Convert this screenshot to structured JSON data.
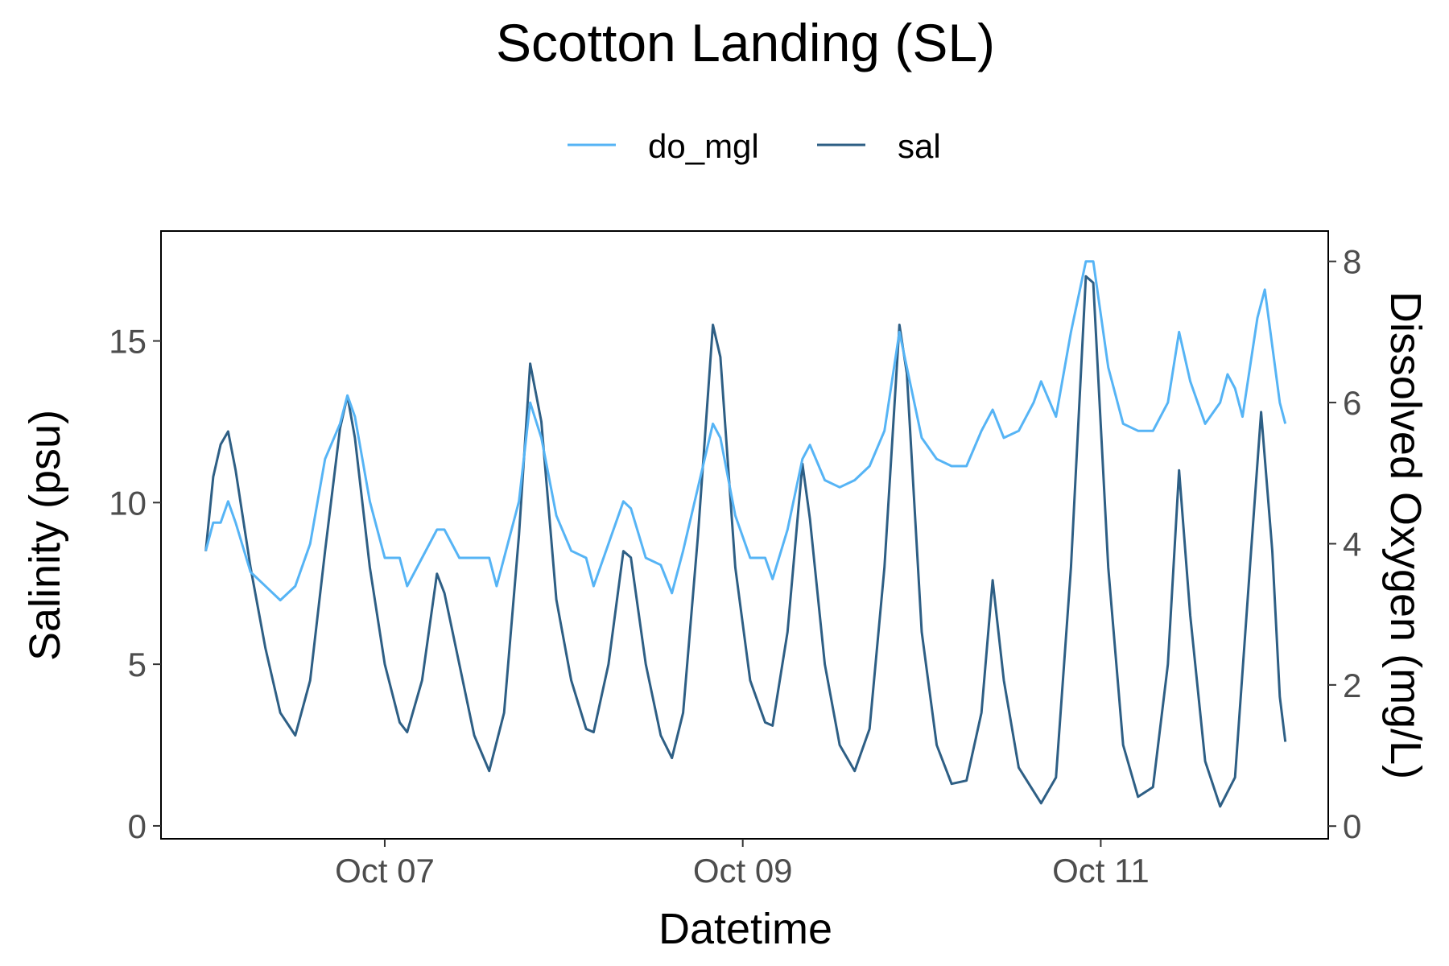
{
  "chart_data": {
    "type": "line",
    "title": "Scotton Landing (SL)",
    "xlabel": "Datetime",
    "ylabel": "Salinity (psu)",
    "y2label": "Dissolved Oxygen (mg/L)",
    "x_ticks": [
      "Oct 07",
      "Oct 09",
      "Oct 11"
    ],
    "x_tick_values": [
      "2021-10-07",
      "2021-10-09",
      "2021-10-11"
    ],
    "xlim": [
      "2021-10-05T18:00",
      "2021-10-12T06:30"
    ],
    "ylim": [
      -0.4,
      18.4
    ],
    "y_ticks": [
      0,
      5,
      10,
      15
    ],
    "y2lim": [
      -0.18,
      8.43
    ],
    "y2_ticks": [
      0,
      2,
      4,
      6,
      8
    ],
    "grid": false,
    "legend": {
      "position": "top",
      "entries": [
        "do_mgl",
        "sal"
      ]
    },
    "colors": {
      "do_mgl": "#56B4F5",
      "sal": "#2E5F85"
    },
    "series": [
      {
        "name": "sal",
        "axis": "left",
        "points": [
          [
            "2021-10-06T00:00",
            8.5
          ],
          [
            "2021-10-06T01:00",
            10.8
          ],
          [
            "2021-10-06T02:00",
            11.8
          ],
          [
            "2021-10-06T03:00",
            12.2
          ],
          [
            "2021-10-06T04:00",
            11.0
          ],
          [
            "2021-10-06T06:00",
            8.0
          ],
          [
            "2021-10-06T08:00",
            5.5
          ],
          [
            "2021-10-06T10:00",
            3.5
          ],
          [
            "2021-10-06T12:00",
            2.8
          ],
          [
            "2021-10-06T14:00",
            4.5
          ],
          [
            "2021-10-06T16:00",
            8.5
          ],
          [
            "2021-10-06T18:00",
            12.3
          ],
          [
            "2021-10-06T19:00",
            13.3
          ],
          [
            "2021-10-06T20:00",
            12.0
          ],
          [
            "2021-10-06T22:00",
            8.0
          ],
          [
            "2021-10-07T00:00",
            5.0
          ],
          [
            "2021-10-07T02:00",
            3.2
          ],
          [
            "2021-10-07T03:00",
            2.9
          ],
          [
            "2021-10-07T05:00",
            4.5
          ],
          [
            "2021-10-07T07:00",
            7.8
          ],
          [
            "2021-10-07T08:00",
            7.2
          ],
          [
            "2021-10-07T10:00",
            5.0
          ],
          [
            "2021-10-07T12:00",
            2.8
          ],
          [
            "2021-10-07T14:00",
            1.7
          ],
          [
            "2021-10-07T16:00",
            3.5
          ],
          [
            "2021-10-07T18:00",
            9.0
          ],
          [
            "2021-10-07T19:30",
            14.3
          ],
          [
            "2021-10-07T21:00",
            12.5
          ],
          [
            "2021-10-07T23:00",
            7.0
          ],
          [
            "2021-10-08T01:00",
            4.5
          ],
          [
            "2021-10-08T03:00",
            3.0
          ],
          [
            "2021-10-08T04:00",
            2.9
          ],
          [
            "2021-10-08T06:00",
            5.0
          ],
          [
            "2021-10-08T08:00",
            8.5
          ],
          [
            "2021-10-08T09:00",
            8.3
          ],
          [
            "2021-10-08T11:00",
            5.0
          ],
          [
            "2021-10-08T13:00",
            2.8
          ],
          [
            "2021-10-08T14:30",
            2.1
          ],
          [
            "2021-10-08T16:00",
            3.5
          ],
          [
            "2021-10-08T18:00",
            9.0
          ],
          [
            "2021-10-08T20:00",
            15.5
          ],
          [
            "2021-10-08T21:00",
            14.5
          ],
          [
            "2021-10-08T23:00",
            8.0
          ],
          [
            "2021-10-09T01:00",
            4.5
          ],
          [
            "2021-10-09T03:00",
            3.2
          ],
          [
            "2021-10-09T04:00",
            3.1
          ],
          [
            "2021-10-09T06:00",
            6.0
          ],
          [
            "2021-10-09T08:00",
            11.2
          ],
          [
            "2021-10-09T09:00",
            9.5
          ],
          [
            "2021-10-09T11:00",
            5.0
          ],
          [
            "2021-10-09T13:00",
            2.5
          ],
          [
            "2021-10-09T15:00",
            1.7
          ],
          [
            "2021-10-09T17:00",
            3.0
          ],
          [
            "2021-10-09T19:00",
            8.0
          ],
          [
            "2021-10-09T21:00",
            15.5
          ],
          [
            "2021-10-09T22:00",
            14.0
          ],
          [
            "2021-10-10T00:00",
            6.0
          ],
          [
            "2021-10-10T02:00",
            2.5
          ],
          [
            "2021-10-10T04:00",
            1.3
          ],
          [
            "2021-10-10T06:00",
            1.4
          ],
          [
            "2021-10-10T08:00",
            3.5
          ],
          [
            "2021-10-10T09:30",
            7.6
          ],
          [
            "2021-10-10T11:00",
            4.5
          ],
          [
            "2021-10-10T13:00",
            1.8
          ],
          [
            "2021-10-10T16:00",
            0.7
          ],
          [
            "2021-10-10T18:00",
            1.5
          ],
          [
            "2021-10-10T20:00",
            8.0
          ],
          [
            "2021-10-10T22:00",
            17.0
          ],
          [
            "2021-10-10T23:00",
            16.8
          ],
          [
            "2021-10-11T01:00",
            8.0
          ],
          [
            "2021-10-11T03:00",
            2.5
          ],
          [
            "2021-10-11T05:00",
            0.9
          ],
          [
            "2021-10-11T07:00",
            1.2
          ],
          [
            "2021-10-11T09:00",
            5.0
          ],
          [
            "2021-10-11T10:30",
            11.0
          ],
          [
            "2021-10-11T12:00",
            6.5
          ],
          [
            "2021-10-11T14:00",
            2.0
          ],
          [
            "2021-10-11T16:00",
            0.6
          ],
          [
            "2021-10-11T18:00",
            1.5
          ],
          [
            "2021-10-11T20:00",
            8.0
          ],
          [
            "2021-10-11T21:30",
            12.8
          ],
          [
            "2021-10-11T23:00",
            8.5
          ],
          [
            "2021-10-12T00:00",
            4.0
          ],
          [
            "2021-10-12T00:45",
            2.6
          ]
        ]
      },
      {
        "name": "do_mgl",
        "axis": "right",
        "points": [
          [
            "2021-10-06T00:00",
            3.9
          ],
          [
            "2021-10-06T01:00",
            4.3
          ],
          [
            "2021-10-06T02:00",
            4.3
          ],
          [
            "2021-10-06T03:00",
            4.6
          ],
          [
            "2021-10-06T04:00",
            4.3
          ],
          [
            "2021-10-06T06:00",
            3.6
          ],
          [
            "2021-10-06T08:00",
            3.4
          ],
          [
            "2021-10-06T10:00",
            3.2
          ],
          [
            "2021-10-06T12:00",
            3.4
          ],
          [
            "2021-10-06T14:00",
            4.0
          ],
          [
            "2021-10-06T16:00",
            5.2
          ],
          [
            "2021-10-06T18:00",
            5.7
          ],
          [
            "2021-10-06T19:00",
            6.1
          ],
          [
            "2021-10-06T20:00",
            5.8
          ],
          [
            "2021-10-06T22:00",
            4.6
          ],
          [
            "2021-10-07T00:00",
            3.8
          ],
          [
            "2021-10-07T02:00",
            3.8
          ],
          [
            "2021-10-07T03:00",
            3.4
          ],
          [
            "2021-10-07T05:00",
            3.8
          ],
          [
            "2021-10-07T07:00",
            4.2
          ],
          [
            "2021-10-07T08:00",
            4.2
          ],
          [
            "2021-10-07T10:00",
            3.8
          ],
          [
            "2021-10-07T12:00",
            3.8
          ],
          [
            "2021-10-07T14:00",
            3.8
          ],
          [
            "2021-10-07T15:00",
            3.4
          ],
          [
            "2021-10-07T16:00",
            3.8
          ],
          [
            "2021-10-07T18:00",
            4.6
          ],
          [
            "2021-10-07T19:30",
            6.0
          ],
          [
            "2021-10-07T21:00",
            5.5
          ],
          [
            "2021-10-07T23:00",
            4.4
          ],
          [
            "2021-10-08T01:00",
            3.9
          ],
          [
            "2021-10-08T03:00",
            3.8
          ],
          [
            "2021-10-08T04:00",
            3.4
          ],
          [
            "2021-10-08T06:00",
            4.0
          ],
          [
            "2021-10-08T08:00",
            4.6
          ],
          [
            "2021-10-08T09:00",
            4.5
          ],
          [
            "2021-10-08T11:00",
            3.8
          ],
          [
            "2021-10-08T13:00",
            3.7
          ],
          [
            "2021-10-08T14:30",
            3.3
          ],
          [
            "2021-10-08T16:00",
            3.9
          ],
          [
            "2021-10-08T18:00",
            4.8
          ],
          [
            "2021-10-08T20:00",
            5.7
          ],
          [
            "2021-10-08T21:00",
            5.5
          ],
          [
            "2021-10-08T23:00",
            4.4
          ],
          [
            "2021-10-09T01:00",
            3.8
          ],
          [
            "2021-10-09T03:00",
            3.8
          ],
          [
            "2021-10-09T04:00",
            3.5
          ],
          [
            "2021-10-09T06:00",
            4.2
          ],
          [
            "2021-10-09T08:00",
            5.2
          ],
          [
            "2021-10-09T09:00",
            5.4
          ],
          [
            "2021-10-09T11:00",
            4.9
          ],
          [
            "2021-10-09T13:00",
            4.8
          ],
          [
            "2021-10-09T15:00",
            4.9
          ],
          [
            "2021-10-09T17:00",
            5.1
          ],
          [
            "2021-10-09T19:00",
            5.6
          ],
          [
            "2021-10-09T21:00",
            7.0
          ],
          [
            "2021-10-09T22:00",
            6.5
          ],
          [
            "2021-10-10T00:00",
            5.5
          ],
          [
            "2021-10-10T02:00",
            5.2
          ],
          [
            "2021-10-10T04:00",
            5.1
          ],
          [
            "2021-10-10T06:00",
            5.1
          ],
          [
            "2021-10-10T08:00",
            5.6
          ],
          [
            "2021-10-10T09:30",
            5.9
          ],
          [
            "2021-10-10T11:00",
            5.5
          ],
          [
            "2021-10-10T13:00",
            5.6
          ],
          [
            "2021-10-10T15:00",
            6.0
          ],
          [
            "2021-10-10T16:00",
            6.3
          ],
          [
            "2021-10-10T18:00",
            5.8
          ],
          [
            "2021-10-10T20:00",
            7.0
          ],
          [
            "2021-10-10T22:00",
            8.0
          ],
          [
            "2021-10-10T23:00",
            8.0
          ],
          [
            "2021-10-11T01:00",
            6.5
          ],
          [
            "2021-10-11T03:00",
            5.7
          ],
          [
            "2021-10-11T05:00",
            5.6
          ],
          [
            "2021-10-11T07:00",
            5.6
          ],
          [
            "2021-10-11T09:00",
            6.0
          ],
          [
            "2021-10-11T10:30",
            7.0
          ],
          [
            "2021-10-11T12:00",
            6.3
          ],
          [
            "2021-10-11T14:00",
            5.7
          ],
          [
            "2021-10-11T16:00",
            6.0
          ],
          [
            "2021-10-11T17:00",
            6.4
          ],
          [
            "2021-10-11T18:00",
            6.2
          ],
          [
            "2021-10-11T19:00",
            5.8
          ],
          [
            "2021-10-11T21:00",
            7.2
          ],
          [
            "2021-10-11T22:00",
            7.6
          ],
          [
            "2021-10-12T00:00",
            6.0
          ],
          [
            "2021-10-12T00:45",
            5.7
          ]
        ]
      }
    ]
  }
}
